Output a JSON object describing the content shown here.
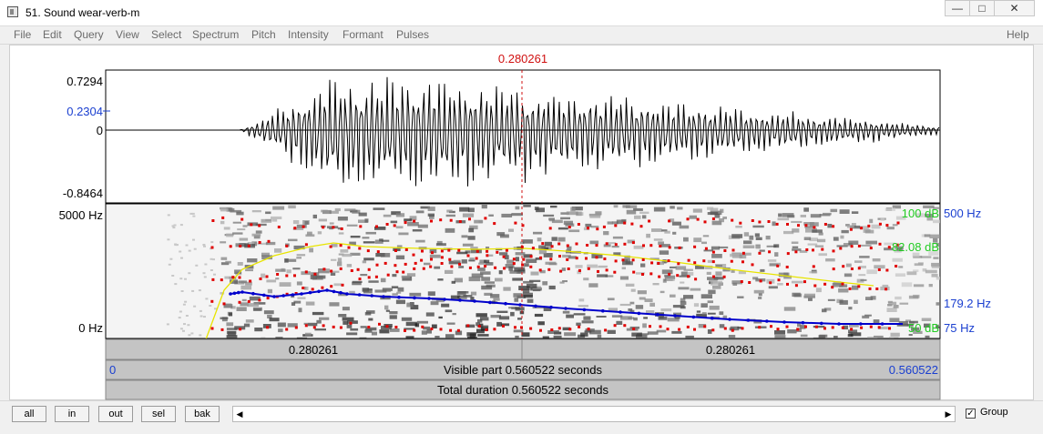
{
  "window": {
    "title": "51. Sound wear-verb-m",
    "controls": [
      "minimize",
      "maximize",
      "close"
    ]
  },
  "menu": [
    "File",
    "Edit",
    "Query",
    "View",
    "Select",
    "Spectrum",
    "Pitch",
    "Intensity",
    "Formant",
    "Pulses"
  ],
  "help_label": "Help",
  "editor": {
    "cursor_time": "0.280261",
    "waveform": {
      "max_label": "0.7294",
      "value_label": "0.2304",
      "zero_label": "0",
      "min_label": "-0.8464"
    },
    "spectrogram": {
      "top_freq": "5000 Hz",
      "bottom_freq": "0 Hz",
      "intensity_top": "100 dB",
      "intensity_value": "82.08 dB",
      "intensity_bottom": "50 dB",
      "pitch_top": "500 Hz",
      "pitch_value": "179.2 Hz",
      "pitch_bottom": "75 Hz"
    },
    "time_bars": {
      "left_segment": "0.280261",
      "right_segment": "0.280261",
      "start": "0",
      "visible": "Visible part 0.560522 seconds",
      "end": "0.560522",
      "total": "Total duration 0.560522 seconds"
    }
  },
  "bottom_buttons": [
    "all",
    "in",
    "out",
    "sel",
    "bak"
  ],
  "group_label": "Group",
  "group_checked": true,
  "colors": {
    "cursor": "#d01010",
    "pitch": "#0000cc",
    "intensity": "#e8e400",
    "formant": "#e00000",
    "db_labels": "#22cc22",
    "blue_labels": "#1a3fd0"
  }
}
